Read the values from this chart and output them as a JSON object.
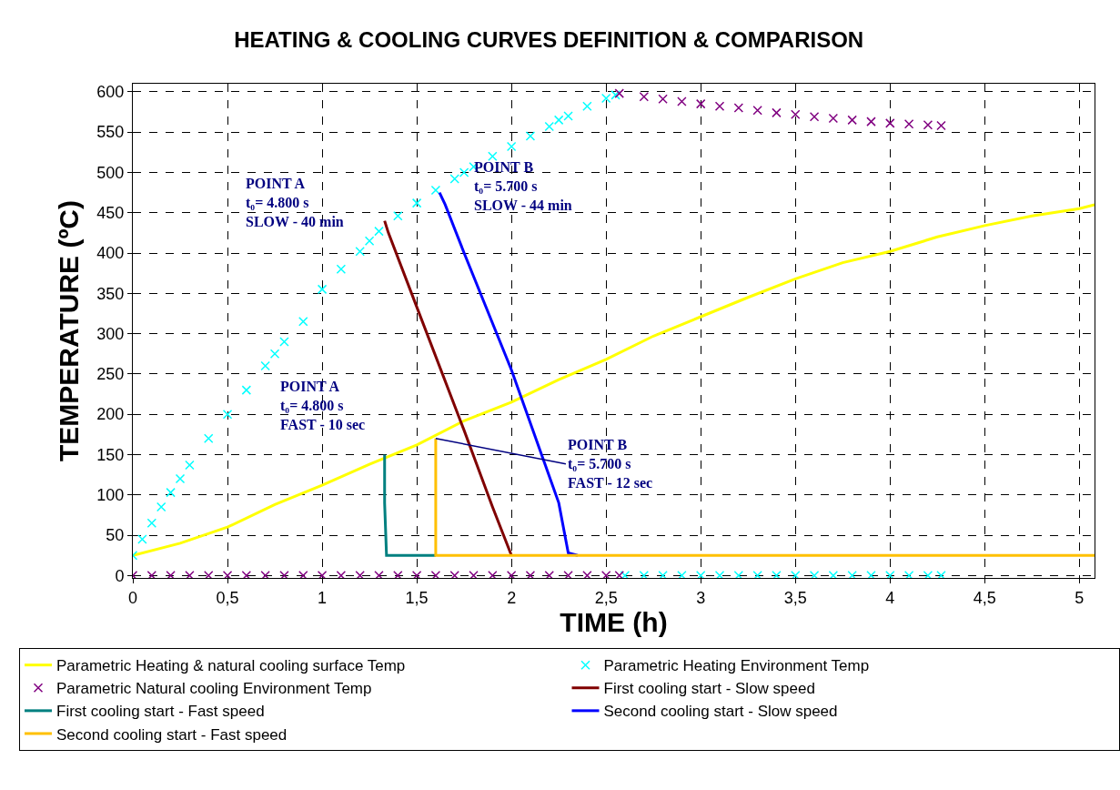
{
  "chart_data": {
    "type": "line",
    "title": "HEATING & COOLING CURVES DEFINITION & COMPARISON",
    "xlabel": "TIME (h)",
    "ylabel": "TEMPERATURE (ºC)",
    "xlim": [
      0,
      5.08
    ],
    "ylim": [
      -3,
      610
    ],
    "xticks": [
      0,
      {
        "value": 0.5,
        "label": "0,5"
      },
      1,
      {
        "value": 1.5,
        "label": "1,5"
      },
      2,
      {
        "value": 2.5,
        "label": "2,5"
      },
      3,
      {
        "value": 3.5,
        "label": "3,5"
      },
      4,
      {
        "value": 4.5,
        "label": "4,5"
      },
      5
    ],
    "yticks": [
      0,
      50,
      100,
      150,
      200,
      250,
      300,
      350,
      400,
      450,
      500,
      550,
      600
    ],
    "grid": true,
    "legend": "bottom",
    "series": [
      {
        "name": "Parametric Heating & natural cooling surface Temp",
        "color": "#ffff00",
        "marker": "none",
        "x": [
          0,
          0.25,
          0.5,
          0.75,
          1,
          1.25,
          1.5,
          1.75,
          2,
          2.25,
          2.5,
          2.75,
          3,
          3.25,
          3.5,
          3.75,
          4,
          4.25,
          4.5,
          4.75,
          5,
          5.08
        ],
        "values": [
          25,
          40,
          60,
          88,
          112,
          138,
          162,
          192,
          215,
          243,
          268,
          297,
          321,
          345,
          368,
          388,
          402,
          420,
          434,
          446,
          455,
          460
        ]
      },
      {
        "name": "Parametric Heating Environment Temp",
        "color": "#00ffff",
        "type": "scatter",
        "marker": "cross",
        "x": [
          0,
          0.05,
          0.1,
          0.15,
          0.2,
          0.25,
          0.3,
          0.4,
          0.5,
          0.6,
          0.7,
          0.75,
          0.8,
          0.9,
          1,
          1.1,
          1.2,
          1.25,
          1.3,
          1.4,
          1.5,
          1.6,
          1.7,
          1.75,
          1.8,
          1.9,
          2,
          2.1,
          2.2,
          2.25,
          2.3,
          2.4,
          2.5,
          2.55,
          2.6,
          2.7,
          2.8,
          2.9,
          3,
          3.1,
          3.2,
          3.3,
          3.4,
          3.5,
          3.6,
          3.7,
          3.8,
          3.9,
          4,
          4.1,
          4.2,
          4.27
        ],
        "values": [
          25,
          45,
          65,
          85,
          103,
          120,
          137,
          170,
          200,
          230,
          260,
          275,
          290,
          315,
          355,
          380,
          402,
          415,
          427,
          446,
          462,
          478,
          492,
          500,
          507,
          520,
          532,
          545,
          557,
          565,
          570,
          582,
          592,
          596,
          0,
          0,
          0,
          0,
          0,
          0,
          0,
          0,
          0,
          0,
          0,
          0,
          0,
          0,
          0,
          0,
          0,
          0
        ]
      },
      {
        "name": "Parametric Natural cooling Environment Temp",
        "color": "#800080",
        "type": "scatter",
        "marker": "cross",
        "x": [
          0,
          0.1,
          0.2,
          0.3,
          0.4,
          0.5,
          0.6,
          0.7,
          0.8,
          0.9,
          1,
          1.1,
          1.2,
          1.3,
          1.4,
          1.5,
          1.6,
          1.7,
          1.8,
          1.9,
          2,
          2.1,
          2.2,
          2.3,
          2.4,
          2.5,
          2.57,
          2.57,
          2.7,
          2.8,
          2.9,
          3,
          3.1,
          3.2,
          3.3,
          3.4,
          3.5,
          3.6,
          3.7,
          3.8,
          3.9,
          4,
          4.1,
          4.2,
          4.27
        ],
        "values": [
          0,
          0,
          0,
          0,
          0,
          0,
          0,
          0,
          0,
          0,
          0,
          0,
          0,
          0,
          0,
          0,
          0,
          0,
          0,
          0,
          0,
          0,
          0,
          0,
          0,
          0,
          0,
          598,
          594,
          591,
          588,
          585,
          582,
          580,
          577,
          574,
          572,
          569,
          567,
          565,
          563,
          561,
          560,
          559,
          558
        ]
      },
      {
        "name": "First cooling start - Slow speed",
        "color": "#800000",
        "marker": "none",
        "x": [
          1.33,
          1.35,
          1.5,
          1.75,
          1.9,
          2.0
        ],
        "values": [
          440,
          425,
          333,
          180,
          85,
          25
        ]
      },
      {
        "name": "First cooling start - Fast speed",
        "color": "#008080",
        "marker": "none",
        "x": [
          1.33,
          1.33,
          1.34,
          1.6
        ],
        "values": [
          150,
          90,
          25,
          25
        ]
      },
      {
        "name": "Second cooling start - Slow speed",
        "color": "#0000ff",
        "marker": "none",
        "x": [
          1.62,
          1.65,
          1.75,
          2.0,
          2.25,
          2.3,
          2.35
        ],
        "values": [
          475,
          460,
          400,
          255,
          90,
          28,
          25
        ]
      },
      {
        "name": "Second cooling start - Fast speed",
        "color": "#ffc000",
        "marker": "none",
        "x": [
          1.6,
          1.6,
          5.08
        ],
        "values": [
          170,
          25,
          25
        ]
      }
    ],
    "annotations": [
      "POINT A\nt₀= 4.800 s\nSLOW - 40 min",
      "POINT B\nt₀= 5.700 s\nSLOW - 44 min",
      "POINT A\nt₀= 4.800 s\nFAST - 10 sec",
      {
        "text": "POINT B\nt₀= 5.700 s\nFAST - 12 sec",
        "x": 1.6,
        "y": 170
      }
    ]
  }
}
